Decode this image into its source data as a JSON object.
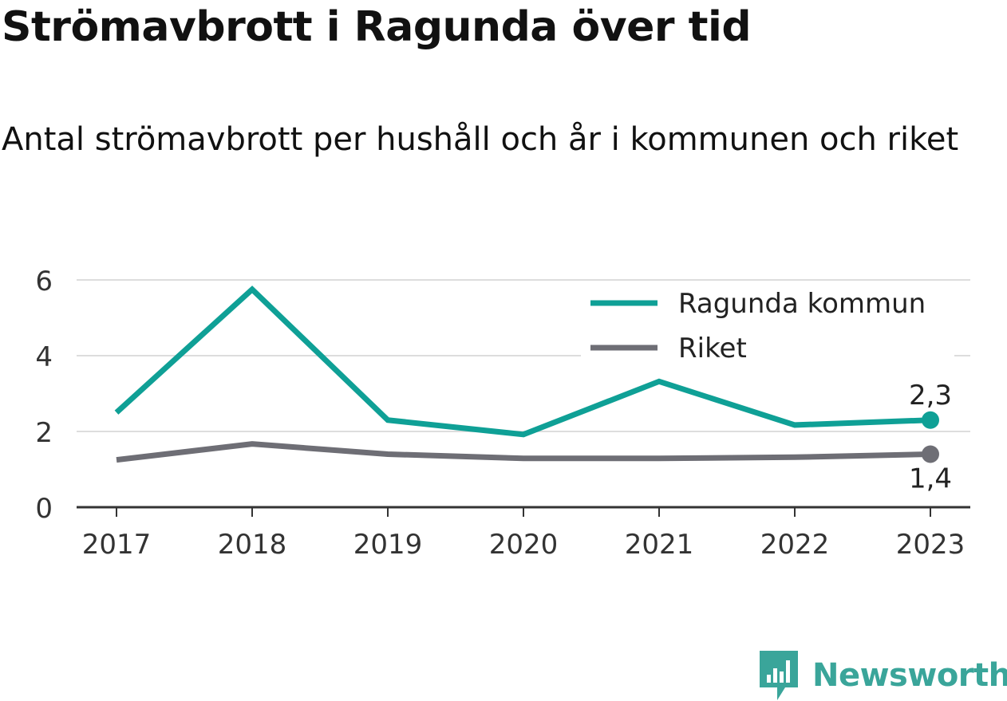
{
  "title": "Strömavbrott i Ragunda över tid",
  "subtitle": "Antal strömavbrott per hushåll och år i kommunen och riket",
  "brand": {
    "name": "Newsworthy",
    "color": "#3aa59a",
    "icon": "newsworthy-logo-icon"
  },
  "chart_data": {
    "type": "line",
    "x": [
      "2017",
      "2018",
      "2019",
      "2020",
      "2021",
      "2022",
      "2023"
    ],
    "series": [
      {
        "name": "Ragunda kommun",
        "values": [
          2.5,
          5.75,
          2.3,
          1.92,
          3.32,
          2.17,
          2.3
        ],
        "color": "#0fa096",
        "end_label": "2,3"
      },
      {
        "name": "Riket",
        "values": [
          1.25,
          1.67,
          1.4,
          1.29,
          1.29,
          1.32,
          1.4
        ],
        "color": "#6e6e75",
        "end_label": "1,4"
      }
    ],
    "ylim": [
      0,
      6
    ],
    "yticks": [
      "0",
      "2",
      "4",
      "6"
    ],
    "grid": true,
    "legend": "top-right",
    "xlabel": "",
    "ylabel": ""
  }
}
